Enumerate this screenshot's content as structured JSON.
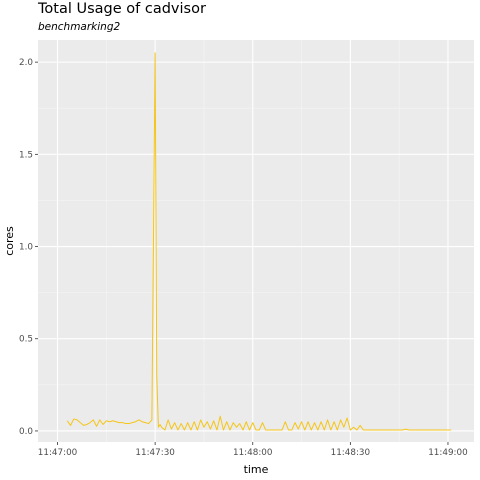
{
  "chart_data": {
    "type": "line",
    "title": "Total Usage of cadvisor",
    "subtitle": "benchmarking2",
    "xlabel": "time",
    "ylabel": "cores",
    "x_ticks": [
      "11:47:00",
      "11:47:30",
      "11:48:00",
      "11:48:30",
      "11:49:00"
    ],
    "x_tick_seconds": [
      0,
      30,
      60,
      90,
      120
    ],
    "xlim_seconds": [
      -6,
      128
    ],
    "y_ticks": [
      "0.0",
      "0.5",
      "1.0",
      "1.5",
      "2.0"
    ],
    "y_tick_values": [
      0,
      0.5,
      1.0,
      1.5,
      2.0
    ],
    "ylim": [
      -0.06,
      2.12
    ],
    "grid": true,
    "line_color": "#f5c518",
    "series": [
      {
        "x": [
          3,
          4,
          5,
          6,
          7,
          8,
          9,
          10,
          11,
          12,
          13,
          14,
          15,
          16,
          17,
          18,
          19,
          20,
          21,
          22,
          23,
          24,
          25,
          26,
          27,
          28,
          29,
          30,
          30.5,
          31,
          31.5,
          32,
          33,
          34,
          35,
          36,
          37,
          38,
          39,
          40,
          41,
          42,
          43,
          44,
          45,
          46,
          47,
          48,
          49,
          50,
          51,
          52,
          53,
          54,
          55,
          56,
          57,
          58,
          59,
          60,
          61,
          62,
          63,
          64,
          65,
          66,
          67,
          68,
          69,
          70,
          71,
          72,
          73,
          74,
          75,
          76,
          77,
          78,
          79,
          80,
          81,
          82,
          83,
          84,
          85,
          86,
          87,
          88,
          89,
          90,
          91,
          92,
          93,
          94,
          95,
          96,
          97,
          98,
          99,
          100,
          101,
          102,
          103,
          104,
          105,
          106,
          107,
          108,
          109,
          110,
          111,
          112,
          113,
          114,
          115,
          116,
          117,
          118,
          119,
          120,
          121
        ],
        "y": [
          0.055,
          0.03,
          0.065,
          0.06,
          0.045,
          0.03,
          0.035,
          0.045,
          0.06,
          0.025,
          0.06,
          0.035,
          0.055,
          0.05,
          0.055,
          0.05,
          0.045,
          0.045,
          0.04,
          0.04,
          0.045,
          0.05,
          0.06,
          0.05,
          0.045,
          0.04,
          0.06,
          2.05,
          0.3,
          0.02,
          0.035,
          0.02,
          0.005,
          0.06,
          0.01,
          0.045,
          0.005,
          0.04,
          0.005,
          0.045,
          0.005,
          0.05,
          0.005,
          0.06,
          0.02,
          0.05,
          0.01,
          0.055,
          0.005,
          0.08,
          0.005,
          0.05,
          0.005,
          0.045,
          0.02,
          0.04,
          0.005,
          0.05,
          0.005,
          0.045,
          0.005,
          0.005,
          0.045,
          0.005,
          0.005,
          0.005,
          0.005,
          0.005,
          0.005,
          0.05,
          0.005,
          0.005,
          0.045,
          0.01,
          0.05,
          0.005,
          0.05,
          0.005,
          0.045,
          0.005,
          0.05,
          0.005,
          0.06,
          0.005,
          0.05,
          0.005,
          0.06,
          0.02,
          0.07,
          0.005,
          0.02,
          0.005,
          0.03,
          0.005,
          0.005,
          0.005,
          0.005,
          0.005,
          0.005,
          0.005,
          0.005,
          0.005,
          0.005,
          0.005,
          0.005,
          0.005,
          0.01,
          0.005,
          0.005,
          0.005,
          0.005,
          0.005,
          0.005,
          0.005,
          0.005,
          0.005,
          0.005,
          0.005,
          0.005,
          0.005,
          0.005
        ]
      }
    ]
  }
}
